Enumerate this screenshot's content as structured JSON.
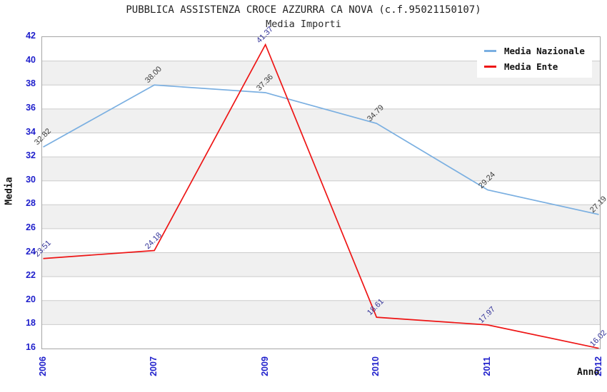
{
  "chart_data": {
    "type": "line",
    "title": "PUBBLICA ASSISTENZA CROCE AZZURRA CA NOVA (c.f.95021150107)",
    "subtitle": "Media Importi",
    "xlabel": "Anno",
    "ylabel": "Media",
    "categories": [
      "2006",
      "2007",
      "2009",
      "2010",
      "2011",
      "2012"
    ],
    "ylim": [
      16,
      42
    ],
    "ytick_step": 2,
    "grid": "horizontal-lines-with-alternating-bands",
    "legend_position": "top-right",
    "series": [
      {
        "name": "Media Nazionale",
        "color": "#7AAFE1",
        "label_color": "#3d3d3d",
        "values": [
          32.82,
          38.0,
          37.36,
          34.79,
          29.24,
          27.19
        ],
        "labels": [
          "32.82",
          "38.00",
          "37.36",
          "34.79",
          "29.24",
          "27.19"
        ]
      },
      {
        "name": "Media Ente",
        "color": "#EE1515",
        "label_color": "#333399",
        "values": [
          23.51,
          24.18,
          41.37,
          18.61,
          17.97,
          16.02
        ],
        "labels": [
          "23.51",
          "24.18",
          "41.37",
          "18.61",
          "17.97",
          "16.02"
        ]
      }
    ]
  },
  "colors": {
    "tick_label": "#2020cc",
    "band": "#f0f0f0",
    "grid_line": "#cccccc",
    "plot_border": "#a6a6a6"
  }
}
